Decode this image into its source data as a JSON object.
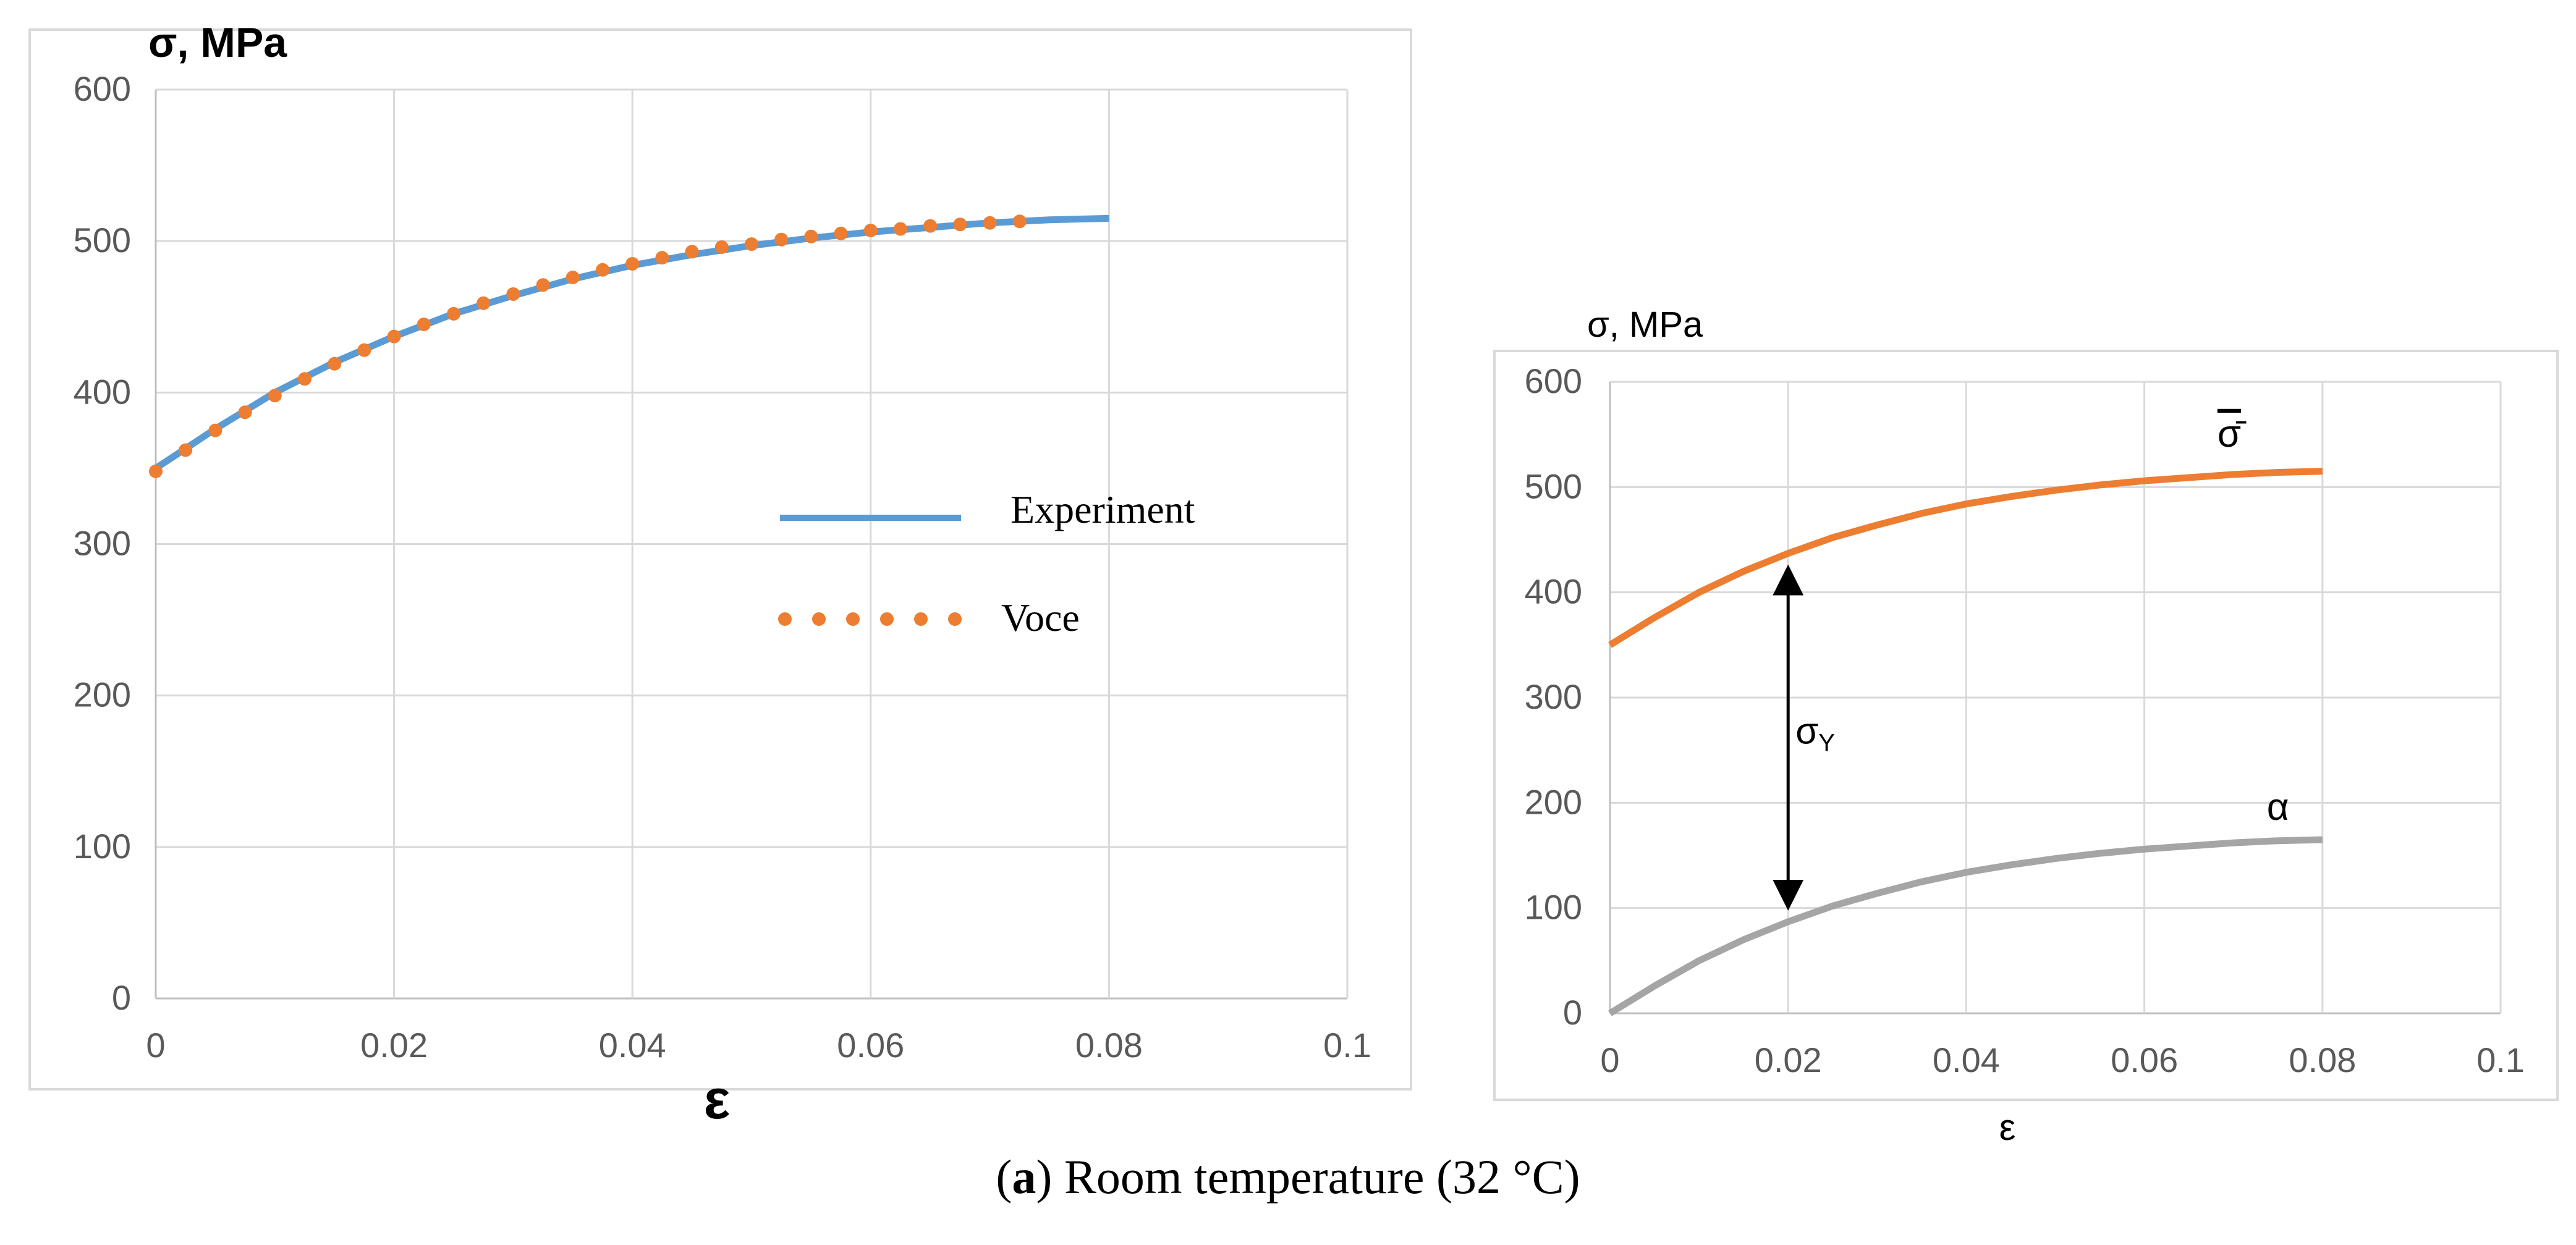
{
  "colors": {
    "experiment": "#5b9bd5",
    "voce": "#ed7d31",
    "alpha": "#a5a5a5",
    "grid": "#d9d9d9",
    "tick": "#595959"
  },
  "chart_data": [
    {
      "type": "line",
      "ylabel": "σ, MPa",
      "xlabel": "ε",
      "xlim": [
        0,
        0.1
      ],
      "ylim": [
        0,
        600
      ],
      "xticks": [
        "0",
        "0.02",
        "0.04",
        "0.06",
        "0.08",
        "0.1"
      ],
      "yticks": [
        "0",
        "100",
        "200",
        "300",
        "400",
        "500",
        "600"
      ],
      "legend": {
        "position": "center-right",
        "entries": [
          "Experiment",
          "Voce"
        ]
      },
      "series": [
        {
          "name": "Experiment",
          "style": "solid",
          "x": [
            0,
            0.005,
            0.01,
            0.015,
            0.02,
            0.025,
            0.03,
            0.035,
            0.04,
            0.045,
            0.05,
            0.055,
            0.06,
            0.065,
            0.07,
            0.075,
            0.08
          ],
          "y": [
            350,
            376,
            400,
            420,
            437,
            452,
            464,
            475,
            484,
            491,
            497,
            502,
            506,
            509,
            512,
            514,
            515
          ]
        },
        {
          "name": "Voce",
          "style": "dotted",
          "x": [
            0,
            0.0025,
            0.005,
            0.0075,
            0.01,
            0.0125,
            0.015,
            0.0175,
            0.02,
            0.0225,
            0.025,
            0.0275,
            0.03,
            0.0325,
            0.035,
            0.0375,
            0.04,
            0.0425,
            0.045,
            0.0475,
            0.05,
            0.0525,
            0.055,
            0.0575,
            0.06,
            0.0625,
            0.065,
            0.0675,
            0.07,
            0.0725
          ],
          "y": [
            348,
            362,
            375,
            387,
            398,
            409,
            419,
            428,
            437,
            445,
            452,
            459,
            465,
            471,
            476,
            481,
            485,
            489,
            493,
            496,
            498,
            501,
            503,
            505,
            507,
            508,
            510,
            511,
            512,
            513
          ]
        }
      ]
    },
    {
      "type": "line",
      "ylabel": "σ, MPa",
      "xlabel": "ε",
      "xlim": [
        0,
        0.1
      ],
      "ylim": [
        0,
        600
      ],
      "xticks": [
        "0",
        "0.02",
        "0.04",
        "0.06",
        "0.08",
        "0.1"
      ],
      "yticks": [
        "0",
        "100",
        "200",
        "300",
        "400",
        "500",
        "600"
      ],
      "series": [
        {
          "name": "σ̄",
          "label": "σ̄",
          "x": [
            0,
            0.005,
            0.01,
            0.015,
            0.02,
            0.025,
            0.03,
            0.035,
            0.04,
            0.045,
            0.05,
            0.055,
            0.06,
            0.065,
            0.07,
            0.075,
            0.08
          ],
          "y": [
            350,
            376,
            400,
            420,
            437,
            452,
            464,
            475,
            484,
            491,
            497,
            502,
            506,
            509,
            512,
            514,
            515
          ]
        },
        {
          "name": "α",
          "label": "α",
          "x": [
            0,
            0.005,
            0.01,
            0.015,
            0.02,
            0.025,
            0.03,
            0.035,
            0.04,
            0.045,
            0.05,
            0.055,
            0.06,
            0.065,
            0.07,
            0.075,
            0.08
          ],
          "y": [
            0,
            26,
            50,
            70,
            87,
            102,
            114,
            125,
            134,
            141,
            147,
            152,
            156,
            159,
            162,
            164,
            165
          ]
        }
      ],
      "annotations": [
        {
          "type": "double-arrow",
          "label": "σ",
          "subscript": "Y",
          "x": 0.02,
          "y_from": 87,
          "y_to": 437
        }
      ]
    }
  ],
  "caption": {
    "bold": "a",
    "open": "(",
    "close": ")",
    "text": " Room temperature (32 °C)"
  }
}
